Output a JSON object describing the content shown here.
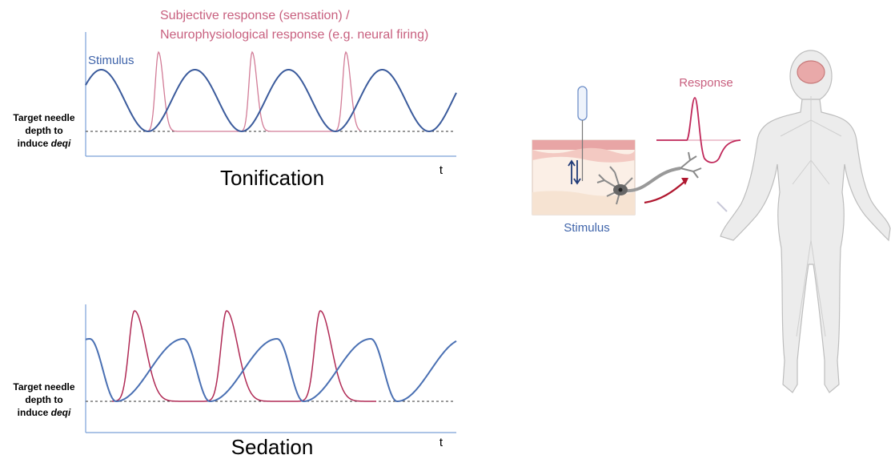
{
  "tonification": {
    "response_label_lines": [
      "Subjective response (sensation) /",
      "Neurophysiological response (e.g. neural firing)"
    ],
    "stimulus_label": "Stimulus",
    "target_label": {
      "lines": [
        "Target needle",
        "depth to"
      ],
      "prefix": "induce",
      "italic": "deqi"
    },
    "axis_label": "t",
    "title": "Tonification"
  },
  "sedation": {
    "target_label": {
      "lines": [
        "Target needle",
        "depth to"
      ],
      "prefix": "induce",
      "italic": "deqi"
    },
    "axis_label": "t",
    "title": "Sedation"
  },
  "illustration": {
    "response_label": "Response",
    "stimulus_label": "Stimulus"
  }
}
